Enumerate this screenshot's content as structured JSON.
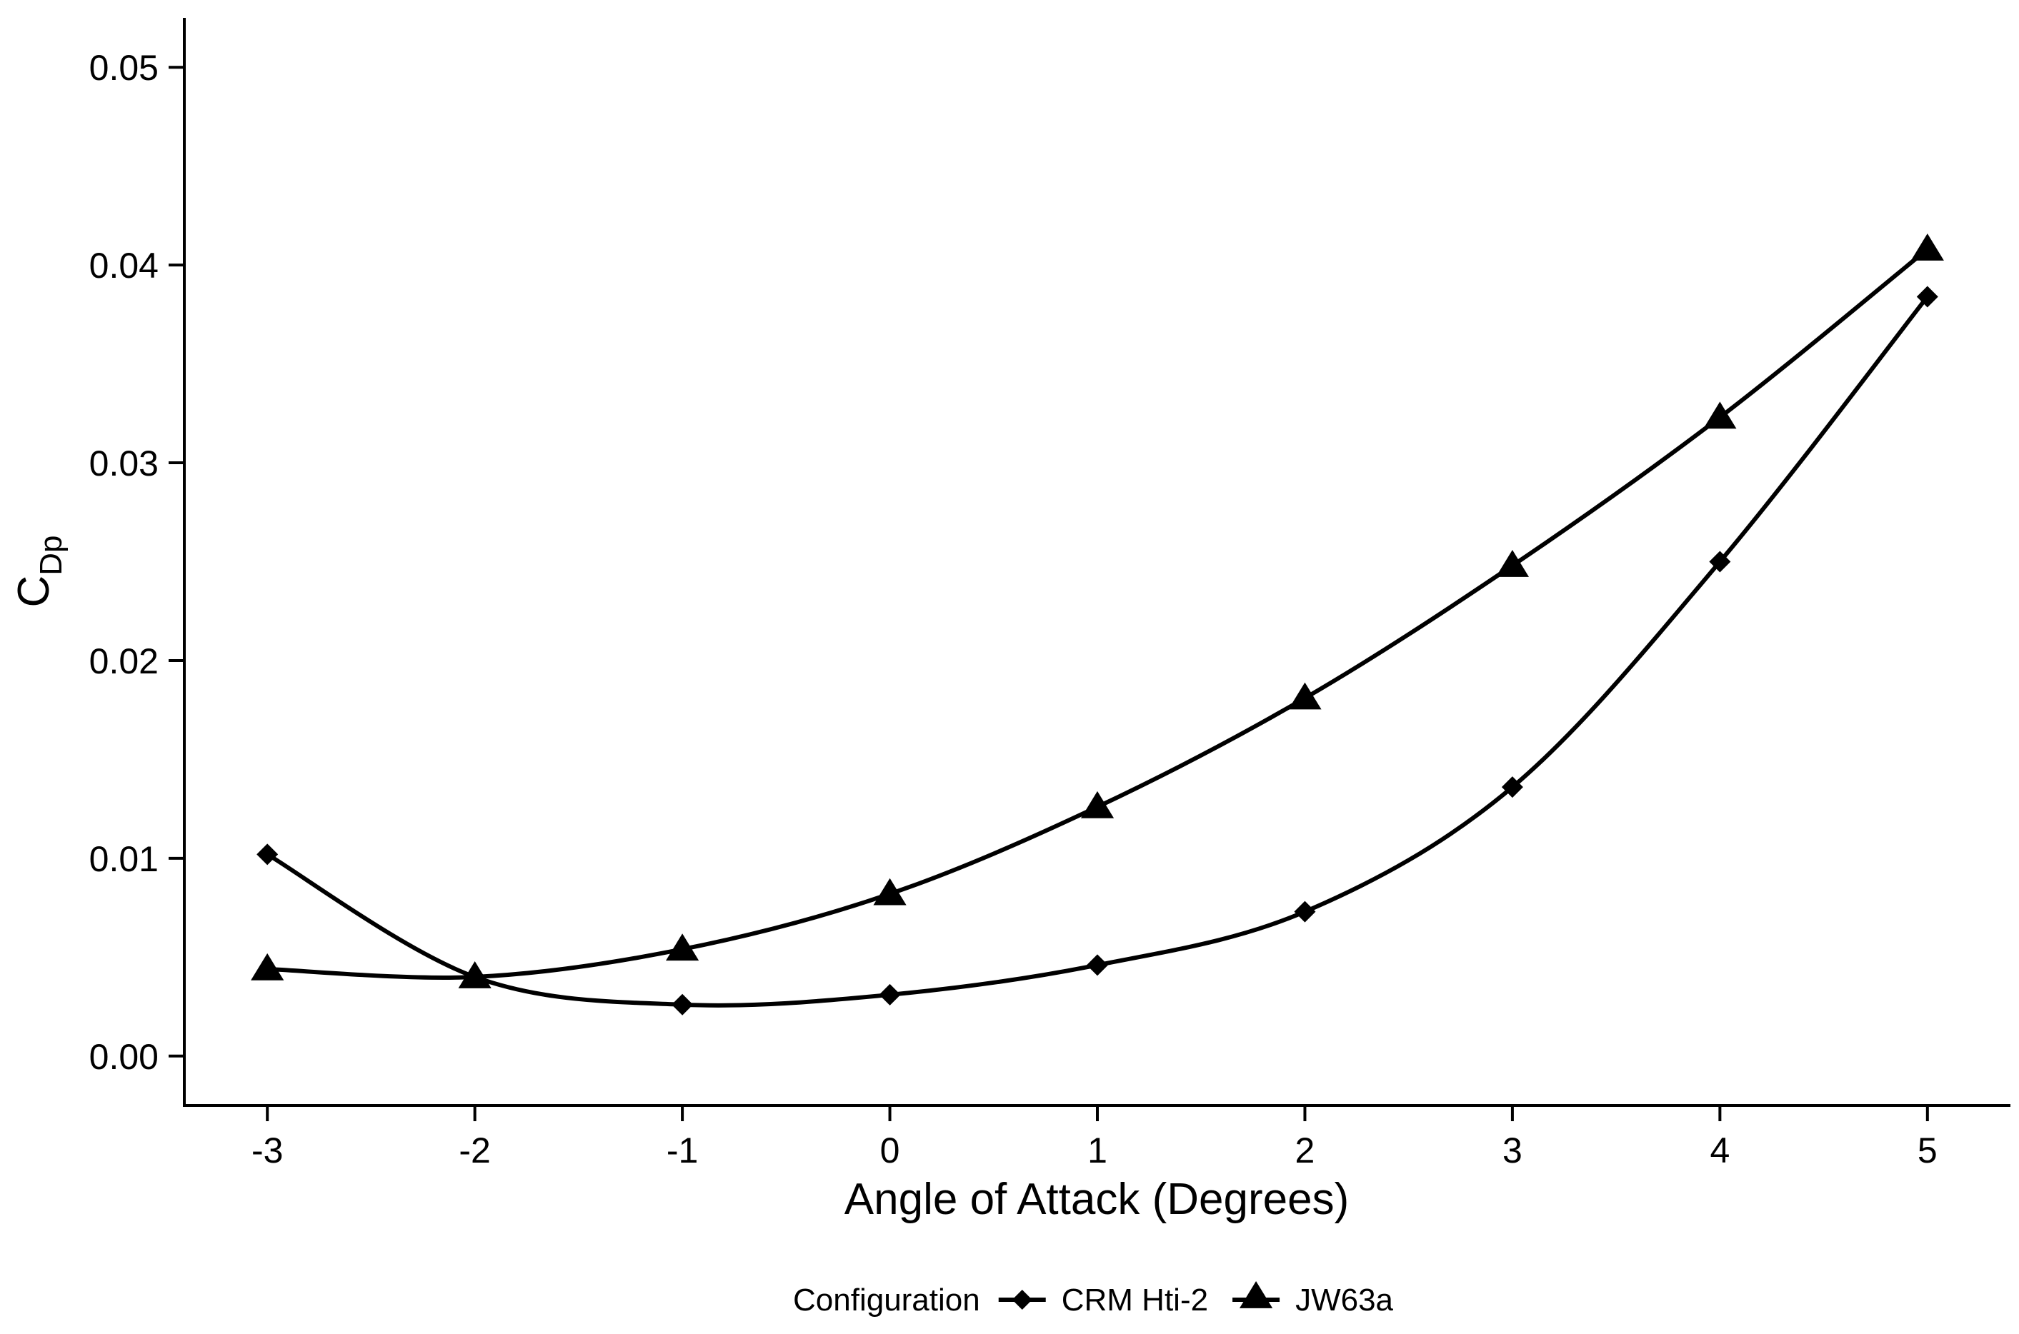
{
  "chart_data": {
    "type": "line",
    "title": "",
    "xlabel": "Angle of Attack (Degrees)",
    "ylabel": {
      "main": "C",
      "sub": "Dp"
    },
    "xlim": [
      -3.4,
      5.4
    ],
    "ylim": [
      -0.0025,
      0.0525
    ],
    "x_ticks": [
      -3,
      -2,
      -1,
      0,
      1,
      2,
      3,
      4,
      5
    ],
    "x_tick_labels": [
      "-3",
      "-2",
      "-1",
      "0",
      "1",
      "2",
      "3",
      "4",
      "5"
    ],
    "y_ticks": [
      0.0,
      0.01,
      0.02,
      0.03,
      0.04,
      0.05
    ],
    "y_tick_labels": [
      "0.00",
      "0.01",
      "0.02",
      "0.03",
      "0.04",
      "0.05"
    ],
    "grid": false,
    "legend": {
      "title": "Configuration",
      "placement": "bottom"
    },
    "x": [
      -3,
      -2,
      -1,
      0,
      1,
      2,
      3,
      4,
      5
    ],
    "series": [
      {
        "name": "CRM Hti-2",
        "marker": "diamond",
        "color": "#000000",
        "values": [
          0.0102,
          0.004,
          0.0026,
          0.0031,
          0.0046,
          0.0073,
          0.0136,
          0.025,
          0.0384
        ]
      },
      {
        "name": "JW63a",
        "marker": "triangle",
        "color": "#000000",
        "values": [
          0.0044,
          0.004,
          0.0054,
          0.0082,
          0.0126,
          0.0181,
          0.0248,
          0.0323,
          0.0408
        ]
      }
    ]
  }
}
